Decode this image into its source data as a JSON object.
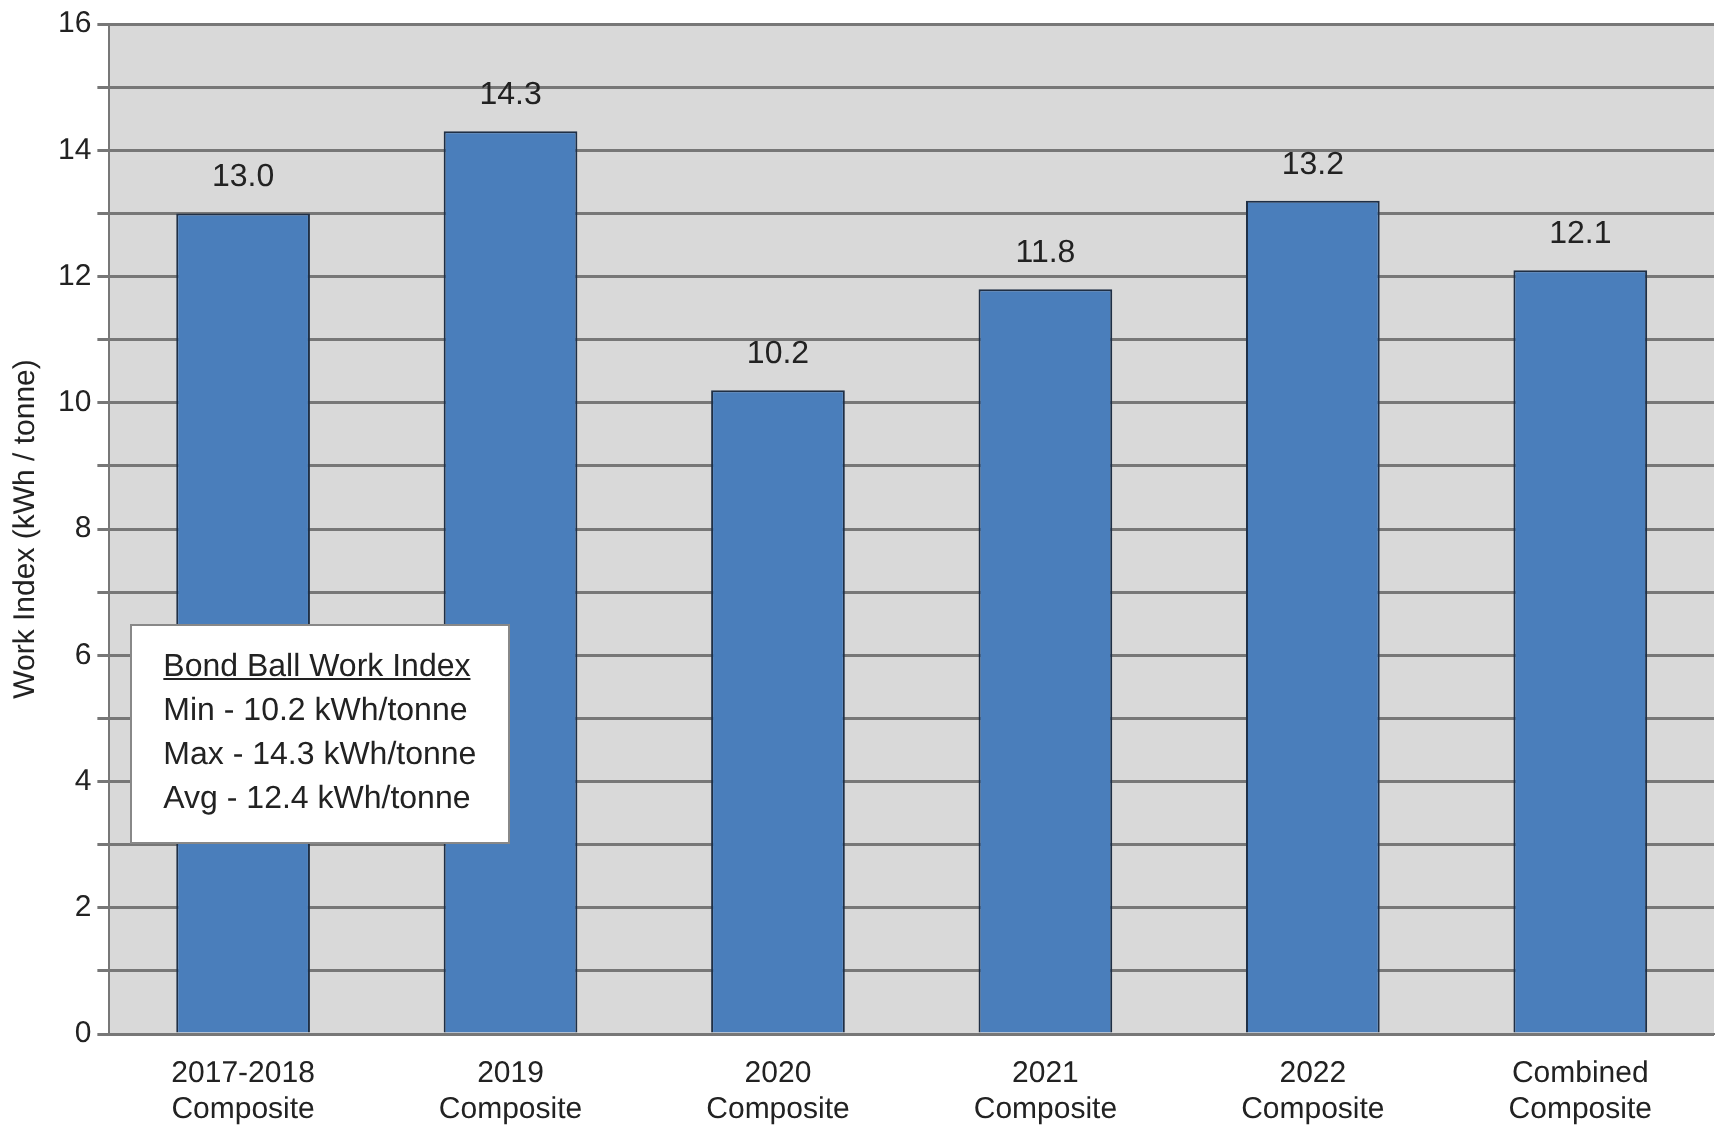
{
  "chart_data": {
    "type": "bar",
    "ylabel": "Work Index (kWh / tonne)",
    "categories": [
      "2017-2018\nComposite",
      "2019\nComposite",
      "2020\nComposite",
      "2021\nComposite",
      "2022\nComposite",
      "Combined\nComposite"
    ],
    "values": [
      13.0,
      14.3,
      10.2,
      11.8,
      13.2,
      12.1
    ],
    "color": "#4a7ebb",
    "value_labels": [
      "13.0",
      "14.3",
      "10.2",
      "11.8",
      "13.2",
      "12.1"
    ],
    "ylim": [
      0,
      16
    ],
    "yticks": [
      0,
      {
        "value": 1,
        "label": null
      },
      2,
      {
        "value": 3,
        "label": null
      },
      4,
      {
        "value": 5,
        "label": null
      },
      6,
      {
        "value": 7,
        "label": null
      },
      8,
      {
        "value": 9,
        "label": null
      },
      10,
      {
        "value": 11,
        "label": null
      },
      12,
      {
        "value": 13,
        "label": null
      },
      14,
      {
        "value": 15,
        "label": null
      },
      16
    ],
    "grid": "y",
    "legend": false,
    "annotations": [
      "Bond Ball Work Index",
      "Min - 10.2 kWh/tonne",
      "Max - 14.3 kWh/tonne",
      "Avg - 12.4 kWh/tonne"
    ]
  }
}
